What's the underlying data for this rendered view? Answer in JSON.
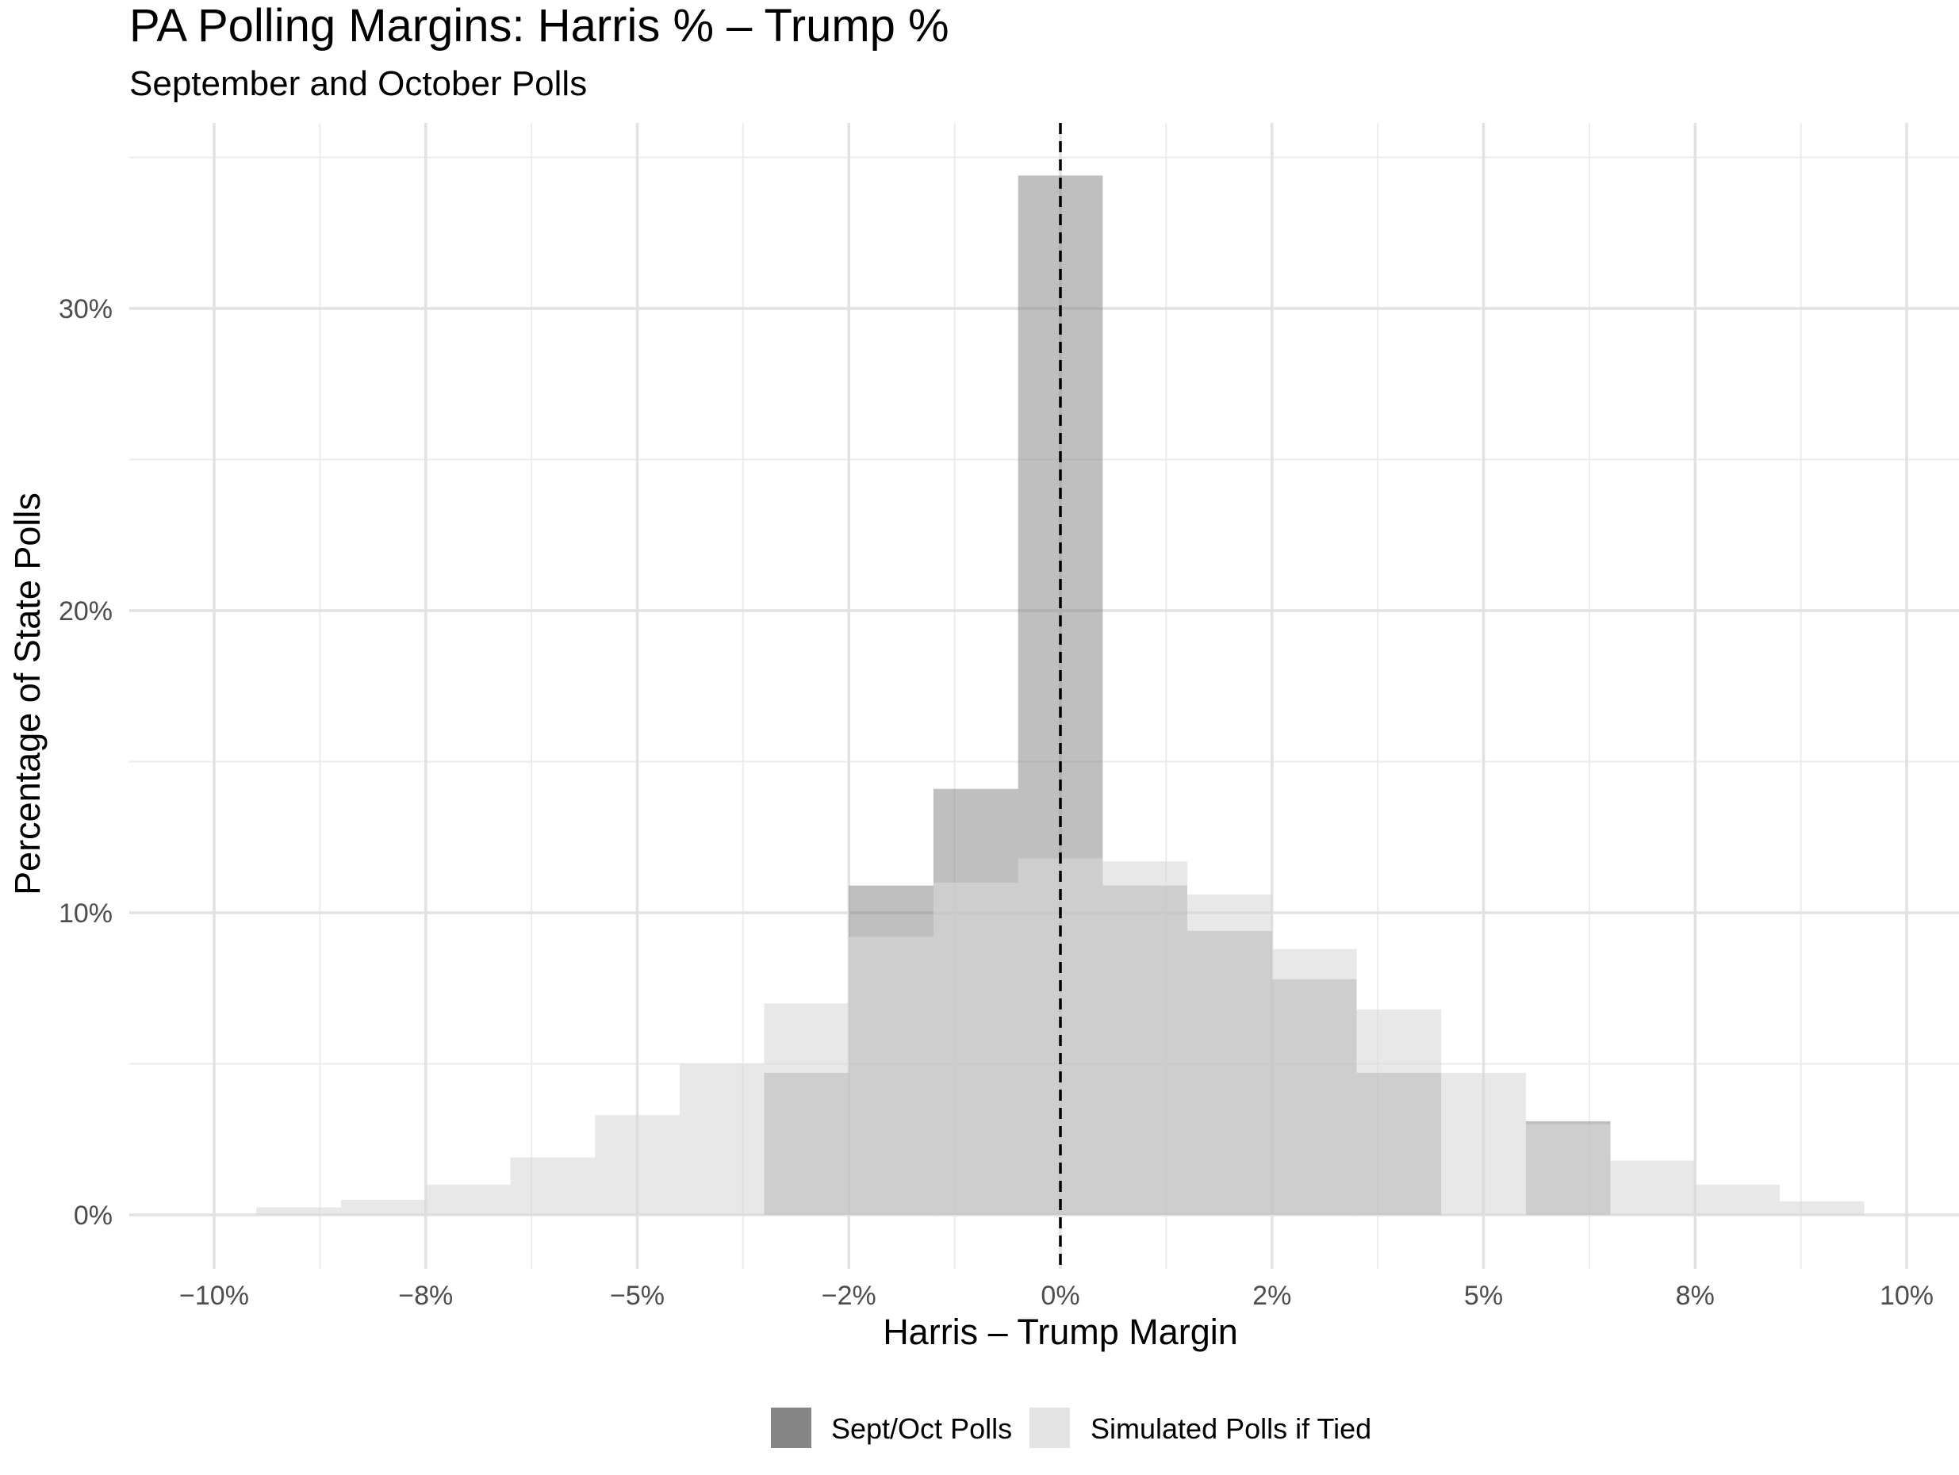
{
  "chart_data": {
    "type": "bar",
    "title": "PA Polling Margins: Harris % – Trump %",
    "subtitle": "September and October Polls",
    "xlabel": "Harris – Trump Margin",
    "ylabel": "Percentage of State Polls",
    "xlim": [
      -10.0,
      10.0
    ],
    "ylim": [
      -1.5,
      36.0
    ],
    "x_ticks": [
      -10,
      -7.5,
      -5,
      -2.5,
      0,
      2.5,
      5,
      7.5,
      10
    ],
    "x_tick_labels": [
      "−10%",
      "−8%",
      "−5%",
      "−2%",
      "0%",
      "2%",
      "5%",
      "8%",
      "10%"
    ],
    "y_ticks": [
      0,
      10,
      20,
      30
    ],
    "y_tick_labels": [
      "0%",
      "10%",
      "20%",
      "30%"
    ],
    "grid": true,
    "reference_line": {
      "x": 0,
      "style": "dashed",
      "color": "#000000"
    },
    "legend_position": "bottom",
    "series": [
      {
        "name": "Sept/Oct Polls",
        "color": "#7f7f7f",
        "opacity": 0.5,
        "bin_edges": [
          -3.5,
          -2.5,
          -1.5,
          -0.5,
          0.5,
          1.5,
          2.5,
          3.5,
          4.5,
          5.5,
          6.5
        ],
        "values": [
          4.7,
          10.9,
          14.1,
          34.4,
          10.9,
          9.4,
          7.8,
          4.7,
          0.0,
          3.1
        ]
      },
      {
        "name": "Simulated Polls if Tied",
        "color": "#d9d9d9",
        "opacity": 0.6,
        "bin_edges": [
          -9.5,
          -8.5,
          -7.5,
          -6.5,
          -5.5,
          -4.5,
          -3.5,
          -2.5,
          -1.5,
          -0.5,
          0.5,
          1.5,
          2.5,
          3.5,
          4.5,
          5.5,
          6.5,
          7.5,
          8.5,
          9.5
        ],
        "values": [
          0.25,
          0.5,
          1.0,
          1.9,
          3.3,
          5.0,
          7.0,
          9.2,
          11.0,
          11.8,
          11.7,
          10.6,
          8.8,
          6.8,
          4.7,
          3.0,
          1.8,
          1.0,
          0.45
        ]
      }
    ]
  }
}
